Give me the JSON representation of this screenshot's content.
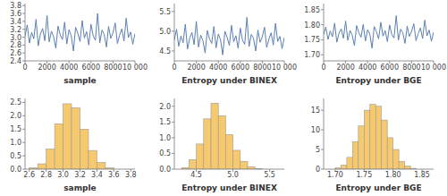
{
  "chart_data": [
    {
      "type": "line",
      "x_label": "sample",
      "color": "#5b80b3",
      "x": [
        0,
        200,
        400,
        600,
        800,
        1000,
        1200,
        1400,
        1600,
        1800,
        2000,
        2200,
        2400,
        2600,
        2800,
        3000,
        3200,
        3400,
        3600,
        3800,
        4000,
        4200,
        4400,
        4600,
        4800,
        5000,
        5200,
        5400,
        5600,
        5800,
        6000,
        6200,
        6400,
        6600,
        6800,
        7000,
        7200,
        7400,
        7600,
        7800,
        8000,
        8200,
        8400,
        8600,
        8800,
        9000,
        9200,
        9400,
        9600,
        9800,
        10000
      ],
      "values": [
        3.02,
        3.31,
        2.85,
        3.12,
        2.96,
        3.45,
        2.78,
        3.08,
        3.22,
        2.91,
        3.55,
        2.88,
        3.15,
        3.01,
        2.72,
        3.28,
        3.06,
        2.94,
        3.38,
        2.83,
        3.19,
        3.04,
        2.65,
        3.25,
        3.1,
        2.89,
        3.42,
        2.98,
        3.14,
        2.8,
        3.33,
        3.03,
        2.92,
        3.6,
        2.86,
        3.18,
        3.07,
        2.75,
        3.27,
        2.97,
        3.11,
        3.36,
        2.84,
        3.05,
        3.21,
        2.9,
        3.48,
        2.99,
        3.13,
        2.82,
        3.09
      ],
      "xlim": [
        0,
        10000
      ],
      "xticks": [
        0,
        2000,
        4000,
        6000,
        8000,
        {
          "value": 10000,
          "label": "10 000"
        }
      ],
      "ylim": [
        2.4,
        3.85
      ],
      "yticks": [
        2.4,
        2.6,
        2.8,
        {
          "value": 3,
          "label": "3.0"
        },
        3.2,
        3.4,
        3.6,
        3.8
      ]
    },
    {
      "type": "line",
      "x_label": "Entropy under BINEX",
      "color": "#5b80b3",
      "x": [
        0,
        200,
        400,
        600,
        800,
        1000,
        1200,
        1400,
        1600,
        1800,
        2000,
        2200,
        2400,
        2600,
        2800,
        3000,
        3200,
        3400,
        3600,
        3800,
        4000,
        4200,
        4400,
        4600,
        4800,
        5000,
        5200,
        5400,
        5600,
        5800,
        6000,
        6200,
        6400,
        6600,
        6800,
        7000,
        7200,
        7400,
        7600,
        7800,
        8000,
        8200,
        8400,
        8600,
        8800,
        9000,
        9200,
        9400,
        9600,
        9800,
        10000
      ],
      "values": [
        4.78,
        5.05,
        4.62,
        4.88,
        4.71,
        5.18,
        4.55,
        4.83,
        4.97,
        4.66,
        5.25,
        4.6,
        4.9,
        4.76,
        4.45,
        5.02,
        4.81,
        4.69,
        5.12,
        4.58,
        4.93,
        4.79,
        4.4,
        5.0,
        4.85,
        4.64,
        5.15,
        4.73,
        4.89,
        4.57,
        5.08,
        4.77,
        4.67,
        5.35,
        4.61,
        4.92,
        4.82,
        4.5,
        5.03,
        4.72,
        4.86,
        5.1,
        4.59,
        4.8,
        4.96,
        4.65,
        5.2,
        4.74,
        4.87,
        4.56,
        4.84
      ],
      "xlim": [
        0,
        10000
      ],
      "xticks": [
        0,
        2000,
        4000,
        6000,
        8000,
        {
          "value": 10000,
          "label": "10 000"
        }
      ],
      "ylim": [
        4.25,
        5.7
      ],
      "yticks": [
        4.5,
        {
          "value": 5,
          "label": "5.0"
        },
        5.5
      ]
    },
    {
      "type": "line",
      "x_label": "Entropy under BGE",
      "color": "#5b80b3",
      "x": [
        0,
        200,
        400,
        600,
        800,
        1000,
        1200,
        1400,
        1600,
        1800,
        2000,
        2200,
        2400,
        2600,
        2800,
        3000,
        3200,
        3400,
        3600,
        3800,
        4000,
        4200,
        4400,
        4600,
        4800,
        5000,
        5200,
        5400,
        5600,
        5800,
        6000,
        6200,
        6400,
        6600,
        6800,
        7000,
        7200,
        7400,
        7600,
        7800,
        8000,
        8200,
        8400,
        8600,
        8800,
        9000,
        9200,
        9400,
        9600,
        9800,
        10000
      ],
      "values": [
        1.768,
        1.792,
        1.751,
        1.779,
        1.76,
        1.805,
        1.742,
        1.772,
        1.786,
        1.755,
        1.812,
        1.748,
        1.781,
        1.765,
        1.731,
        1.797,
        1.774,
        1.758,
        1.801,
        1.746,
        1.783,
        1.769,
        1.722,
        1.794,
        1.777,
        1.753,
        1.808,
        1.762,
        1.78,
        1.744,
        1.799,
        1.767,
        1.756,
        1.83,
        1.749,
        1.785,
        1.773,
        1.738,
        1.795,
        1.761,
        1.778,
        1.803,
        1.747,
        1.77,
        1.789,
        1.754,
        1.815,
        1.763,
        1.782,
        1.745,
        1.775
      ],
      "xlim": [
        0,
        10000
      ],
      "xticks": [
        0,
        2000,
        4000,
        6000,
        8000,
        {
          "value": 10000,
          "label": "10 000"
        }
      ],
      "ylim": [
        1.68,
        1.87
      ],
      "yticks": [
        {
          "value": 1.7,
          "label": "1.70"
        },
        1.75,
        {
          "value": 1.8,
          "label": "1.80"
        },
        1.85
      ]
    },
    {
      "type": "histogram",
      "x_label": "sample",
      "color": "#f7c96e",
      "bins": [
        2.6,
        2.7,
        2.8,
        2.9,
        3.0,
        3.1,
        3.2,
        3.3,
        3.4,
        3.5,
        3.6
      ],
      "values": [
        0.05,
        0.2,
        0.75,
        1.7,
        2.45,
        2.3,
        1.5,
        0.7,
        0.25,
        0.05
      ],
      "xlim": [
        2.55,
        3.85
      ],
      "xticks": [
        2.6,
        2.8,
        {
          "value": 3,
          "label": "3.0"
        },
        3.2,
        3.4,
        3.6,
        3.8
      ],
      "ylim": [
        0,
        2.65
      ],
      "yticks": [
        {
          "value": 0,
          "label": "0.0"
        },
        0.5,
        {
          "value": 1,
          "label": "1.0"
        },
        1.5,
        {
          "value": 2,
          "label": "2.0"
        },
        2.5
      ]
    },
    {
      "type": "histogram",
      "x_label": "Entropy under BINEX",
      "color": "#f7c96e",
      "bins": [
        4.3,
        4.4,
        4.5,
        4.6,
        4.7,
        4.8,
        4.9,
        5.0,
        5.1,
        5.2,
        5.3,
        5.4
      ],
      "values": [
        0.05,
        0.3,
        0.8,
        1.6,
        2.1,
        1.7,
        1.1,
        0.6,
        0.25,
        0.08,
        0.02
      ],
      "xlim": [
        4.2,
        5.7
      ],
      "xticks": [
        4.5,
        {
          "value": 5,
          "label": "5.0"
        },
        5.5
      ],
      "ylim": [
        0,
        2.25
      ],
      "yticks": [
        {
          "value": 0,
          "label": "0.0"
        },
        0.5,
        {
          "value": 1,
          "label": "1.0"
        },
        1.5,
        {
          "value": 2,
          "label": "2.0"
        }
      ]
    },
    {
      "type": "histogram",
      "x_label": "Entropy under BGE",
      "color": "#f7c96e",
      "bins": [
        1.7,
        1.71,
        1.72,
        1.73,
        1.74,
        1.75,
        1.76,
        1.77,
        1.78,
        1.79,
        1.8,
        1.81,
        1.82,
        1.83,
        1.84
      ],
      "values": [
        0.3,
        1,
        3,
        7,
        11,
        15,
        16.5,
        16,
        12.5,
        8,
        5,
        2,
        0.8,
        0.2
      ],
      "xlim": [
        1.68,
        1.87
      ],
      "xticks": [
        {
          "value": 1.7,
          "label": "1.70"
        },
        1.75,
        {
          "value": 1.8,
          "label": "1.80"
        },
        1.85
      ],
      "ylim": [
        0,
        18
      ],
      "yticks": [
        0,
        5,
        10,
        15
      ]
    }
  ]
}
